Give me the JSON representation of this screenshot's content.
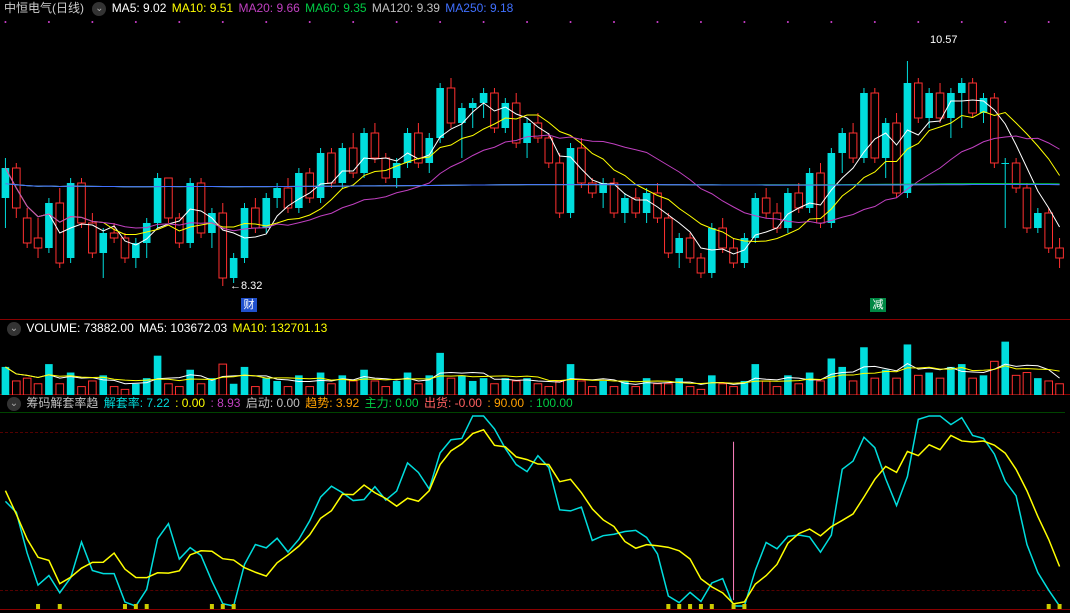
{
  "main": {
    "title": "中恒电气(日线)",
    "ma": [
      {
        "label": "MA5:",
        "value": "9.02",
        "color": "#ffffff"
      },
      {
        "label": "MA10:",
        "value": "9.51",
        "color": "#ffff00"
      },
      {
        "label": "MA20:",
        "value": "9.66",
        "color": "#c040c0"
      },
      {
        "label": "MA60:",
        "value": "9.35",
        "color": "#00cc44"
      },
      {
        "label": "MA120:",
        "value": "9.39",
        "color": "#c0c0c0"
      },
      {
        "label": "MA250:",
        "value": "9.18",
        "color": "#4070ff"
      }
    ],
    "ylim": [
      8.0,
      11.0
    ],
    "annotation_high": "10.57",
    "annotation_low": "8.32",
    "marker_cai": "财",
    "marker_jian": "减",
    "line_colors": {
      "ma5": "#ffffff",
      "ma10": "#ffff00",
      "ma20": "#c040c0",
      "ma60": "#00cc44",
      "ma120": "#c0c0c0",
      "ma250": "#4070ff"
    },
    "candles": [
      {
        "o": 9.2,
        "h": 9.6,
        "l": 8.9,
        "c": 9.5,
        "t": "u"
      },
      {
        "o": 9.5,
        "h": 9.55,
        "l": 9.0,
        "c": 9.1,
        "t": "d"
      },
      {
        "o": 9.0,
        "h": 9.1,
        "l": 8.7,
        "c": 8.75,
        "t": "u"
      },
      {
        "o": 8.8,
        "h": 9.0,
        "l": 8.6,
        "c": 8.7,
        "t": "d"
      },
      {
        "o": 8.7,
        "h": 9.2,
        "l": 8.65,
        "c": 9.15,
        "t": "u"
      },
      {
        "o": 9.15,
        "h": 9.3,
        "l": 8.5,
        "c": 8.55,
        "t": "d"
      },
      {
        "o": 8.6,
        "h": 9.4,
        "l": 8.55,
        "c": 9.35,
        "t": "u"
      },
      {
        "o": 9.35,
        "h": 9.4,
        "l": 8.9,
        "c": 8.95,
        "t": "d"
      },
      {
        "o": 8.95,
        "h": 9.05,
        "l": 8.6,
        "c": 8.65,
        "t": "d"
      },
      {
        "o": 8.65,
        "h": 8.9,
        "l": 8.4,
        "c": 8.85,
        "t": "u"
      },
      {
        "o": 8.85,
        "h": 8.95,
        "l": 8.75,
        "c": 8.8,
        "t": "d"
      },
      {
        "o": 8.8,
        "h": 8.85,
        "l": 8.55,
        "c": 8.6,
        "t": "d"
      },
      {
        "o": 8.6,
        "h": 8.8,
        "l": 8.5,
        "c": 8.75,
        "t": "u"
      },
      {
        "o": 8.75,
        "h": 9.0,
        "l": 8.6,
        "c": 8.95,
        "t": "u"
      },
      {
        "o": 8.95,
        "h": 9.45,
        "l": 8.9,
        "c": 9.4,
        "t": "u"
      },
      {
        "o": 9.4,
        "h": 9.4,
        "l": 8.95,
        "c": 9.0,
        "t": "d"
      },
      {
        "o": 9.0,
        "h": 9.05,
        "l": 8.7,
        "c": 8.75,
        "t": "d"
      },
      {
        "o": 8.75,
        "h": 9.4,
        "l": 8.7,
        "c": 9.35,
        "t": "u"
      },
      {
        "o": 9.35,
        "h": 9.4,
        "l": 8.8,
        "c": 8.85,
        "t": "d"
      },
      {
        "o": 8.85,
        "h": 9.1,
        "l": 8.7,
        "c": 9.05,
        "t": "u"
      },
      {
        "o": 9.05,
        "h": 9.15,
        "l": 8.32,
        "c": 8.4,
        "t": "d"
      },
      {
        "o": 8.4,
        "h": 8.65,
        "l": 8.35,
        "c": 8.6,
        "t": "u"
      },
      {
        "o": 8.6,
        "h": 9.15,
        "l": 8.55,
        "c": 9.1,
        "t": "u"
      },
      {
        "o": 9.1,
        "h": 9.2,
        "l": 8.85,
        "c": 8.9,
        "t": "d"
      },
      {
        "o": 8.9,
        "h": 9.25,
        "l": 8.85,
        "c": 9.2,
        "t": "u"
      },
      {
        "o": 9.2,
        "h": 9.35,
        "l": 9.1,
        "c": 9.3,
        "t": "u"
      },
      {
        "o": 9.3,
        "h": 9.4,
        "l": 9.05,
        "c": 9.1,
        "t": "d"
      },
      {
        "o": 9.1,
        "h": 9.5,
        "l": 9.05,
        "c": 9.45,
        "t": "u"
      },
      {
        "o": 9.45,
        "h": 9.5,
        "l": 9.15,
        "c": 9.2,
        "t": "d"
      },
      {
        "o": 9.2,
        "h": 9.7,
        "l": 9.15,
        "c": 9.65,
        "t": "u"
      },
      {
        "o": 9.65,
        "h": 9.7,
        "l": 9.3,
        "c": 9.35,
        "t": "d"
      },
      {
        "o": 9.35,
        "h": 9.75,
        "l": 9.3,
        "c": 9.7,
        "t": "u"
      },
      {
        "o": 9.7,
        "h": 9.85,
        "l": 9.4,
        "c": 9.45,
        "t": "d"
      },
      {
        "o": 9.45,
        "h": 9.9,
        "l": 9.4,
        "c": 9.85,
        "t": "u"
      },
      {
        "o": 9.85,
        "h": 9.95,
        "l": 9.55,
        "c": 9.6,
        "t": "d"
      },
      {
        "o": 9.6,
        "h": 9.65,
        "l": 9.35,
        "c": 9.4,
        "t": "d"
      },
      {
        "o": 9.4,
        "h": 9.6,
        "l": 9.3,
        "c": 9.55,
        "t": "u"
      },
      {
        "o": 9.55,
        "h": 9.9,
        "l": 9.5,
        "c": 9.85,
        "t": "u"
      },
      {
        "o": 9.85,
        "h": 9.95,
        "l": 9.5,
        "c": 9.55,
        "t": "d"
      },
      {
        "o": 9.55,
        "h": 9.85,
        "l": 9.45,
        "c": 9.8,
        "t": "u"
      },
      {
        "o": 9.8,
        "h": 10.35,
        "l": 9.75,
        "c": 10.3,
        "t": "u"
      },
      {
        "o": 10.3,
        "h": 10.4,
        "l": 9.9,
        "c": 9.95,
        "t": "d"
      },
      {
        "o": 9.95,
        "h": 10.15,
        "l": 9.6,
        "c": 10.1,
        "t": "u"
      },
      {
        "o": 10.1,
        "h": 10.2,
        "l": 9.9,
        "c": 10.15,
        "t": "u"
      },
      {
        "o": 10.15,
        "h": 10.3,
        "l": 10.0,
        "c": 10.25,
        "t": "u"
      },
      {
        "o": 10.25,
        "h": 10.3,
        "l": 9.85,
        "c": 9.9,
        "t": "d"
      },
      {
        "o": 9.9,
        "h": 10.2,
        "l": 9.85,
        "c": 10.15,
        "t": "u"
      },
      {
        "o": 10.15,
        "h": 10.25,
        "l": 9.7,
        "c": 9.75,
        "t": "d"
      },
      {
        "o": 9.75,
        "h": 10.0,
        "l": 9.6,
        "c": 9.95,
        "t": "u"
      },
      {
        "o": 9.95,
        "h": 10.05,
        "l": 9.75,
        "c": 9.8,
        "t": "d"
      },
      {
        "o": 9.8,
        "h": 9.85,
        "l": 9.5,
        "c": 9.55,
        "t": "d"
      },
      {
        "o": 9.55,
        "h": 9.65,
        "l": 9.0,
        "c": 9.05,
        "t": "d"
      },
      {
        "o": 9.05,
        "h": 9.75,
        "l": 9.0,
        "c": 9.7,
        "t": "u"
      },
      {
        "o": 9.7,
        "h": 9.8,
        "l": 9.3,
        "c": 9.35,
        "t": "d"
      },
      {
        "o": 9.35,
        "h": 9.4,
        "l": 9.2,
        "c": 9.25,
        "t": "d"
      },
      {
        "o": 9.25,
        "h": 9.4,
        "l": 9.1,
        "c": 9.35,
        "t": "u"
      },
      {
        "o": 9.35,
        "h": 9.4,
        "l": 9.0,
        "c": 9.05,
        "t": "d"
      },
      {
        "o": 9.05,
        "h": 9.25,
        "l": 8.95,
        "c": 9.2,
        "t": "u"
      },
      {
        "o": 9.2,
        "h": 9.3,
        "l": 9.0,
        "c": 9.05,
        "t": "d"
      },
      {
        "o": 9.05,
        "h": 9.3,
        "l": 8.95,
        "c": 9.25,
        "t": "u"
      },
      {
        "o": 9.25,
        "h": 9.35,
        "l": 8.95,
        "c": 9.0,
        "t": "d"
      },
      {
        "o": 9.0,
        "h": 9.05,
        "l": 8.6,
        "c": 8.65,
        "t": "d"
      },
      {
        "o": 8.65,
        "h": 8.85,
        "l": 8.5,
        "c": 8.8,
        "t": "u"
      },
      {
        "o": 8.8,
        "h": 8.85,
        "l": 8.55,
        "c": 8.6,
        "t": "d"
      },
      {
        "o": 8.6,
        "h": 8.65,
        "l": 8.4,
        "c": 8.45,
        "t": "d"
      },
      {
        "o": 8.45,
        "h": 8.95,
        "l": 8.4,
        "c": 8.9,
        "t": "u"
      },
      {
        "o": 8.9,
        "h": 9.0,
        "l": 8.65,
        "c": 8.7,
        "t": "d"
      },
      {
        "o": 8.7,
        "h": 8.8,
        "l": 8.5,
        "c": 8.55,
        "t": "d"
      },
      {
        "o": 8.55,
        "h": 8.85,
        "l": 8.5,
        "c": 8.8,
        "t": "u"
      },
      {
        "o": 8.8,
        "h": 9.25,
        "l": 8.75,
        "c": 9.2,
        "t": "u"
      },
      {
        "o": 9.2,
        "h": 9.3,
        "l": 9.0,
        "c": 9.05,
        "t": "d"
      },
      {
        "o": 9.05,
        "h": 9.15,
        "l": 8.85,
        "c": 8.9,
        "t": "d"
      },
      {
        "o": 8.9,
        "h": 9.3,
        "l": 8.85,
        "c": 9.25,
        "t": "u"
      },
      {
        "o": 9.25,
        "h": 9.35,
        "l": 9.05,
        "c": 9.1,
        "t": "d"
      },
      {
        "o": 9.1,
        "h": 9.5,
        "l": 9.05,
        "c": 9.45,
        "t": "u"
      },
      {
        "o": 9.45,
        "h": 9.55,
        "l": 8.9,
        "c": 8.95,
        "t": "d"
      },
      {
        "o": 8.95,
        "h": 9.7,
        "l": 8.9,
        "c": 9.65,
        "t": "u"
      },
      {
        "o": 9.65,
        "h": 9.9,
        "l": 9.45,
        "c": 9.85,
        "t": "u"
      },
      {
        "o": 9.85,
        "h": 9.95,
        "l": 9.55,
        "c": 9.6,
        "t": "d"
      },
      {
        "o": 9.6,
        "h": 10.3,
        "l": 9.55,
        "c": 10.25,
        "t": "u"
      },
      {
        "o": 10.25,
        "h": 10.3,
        "l": 9.55,
        "c": 9.6,
        "t": "d"
      },
      {
        "o": 9.6,
        "h": 10.0,
        "l": 9.4,
        "c": 9.95,
        "t": "u"
      },
      {
        "o": 9.95,
        "h": 10.05,
        "l": 9.2,
        "c": 9.25,
        "t": "d"
      },
      {
        "o": 9.25,
        "h": 10.57,
        "l": 9.2,
        "c": 10.35,
        "t": "u"
      },
      {
        "o": 10.35,
        "h": 10.4,
        "l": 9.95,
        "c": 10.0,
        "t": "d"
      },
      {
        "o": 10.0,
        "h": 10.3,
        "l": 9.9,
        "c": 10.25,
        "t": "u"
      },
      {
        "o": 10.25,
        "h": 10.35,
        "l": 9.95,
        "c": 10.0,
        "t": "d"
      },
      {
        "o": 10.0,
        "h": 10.3,
        "l": 9.8,
        "c": 10.25,
        "t": "u"
      },
      {
        "o": 10.25,
        "h": 10.4,
        "l": 9.9,
        "c": 10.35,
        "t": "u"
      },
      {
        "o": 10.35,
        "h": 10.4,
        "l": 10.0,
        "c": 10.05,
        "t": "d"
      },
      {
        "o": 10.05,
        "h": 10.25,
        "l": 9.95,
        "c": 10.2,
        "t": "u"
      },
      {
        "o": 10.2,
        "h": 10.25,
        "l": 9.5,
        "c": 9.55,
        "t": "d"
      },
      {
        "o": 9.55,
        "h": 9.6,
        "l": 8.9,
        "c": 9.55,
        "t": "u"
      },
      {
        "o": 9.55,
        "h": 9.6,
        "l": 9.25,
        "c": 9.3,
        "t": "d"
      },
      {
        "o": 9.3,
        "h": 9.35,
        "l": 8.85,
        "c": 8.9,
        "t": "d"
      },
      {
        "o": 8.9,
        "h": 9.1,
        "l": 8.85,
        "c": 9.05,
        "t": "u"
      },
      {
        "o": 9.05,
        "h": 9.1,
        "l": 8.65,
        "c": 8.7,
        "t": "d"
      },
      {
        "o": 8.7,
        "h": 8.8,
        "l": 8.5,
        "c": 8.6,
        "t": "d"
      }
    ]
  },
  "volume": {
    "labels": [
      {
        "label": "VOLUME:",
        "value": "73882.00",
        "color": "#ffffff"
      },
      {
        "label": "MA5:",
        "value": "103672.03",
        "color": "#ffffff"
      },
      {
        "label": "MA10:",
        "value": "132701.13",
        "color": "#ffff00"
      }
    ],
    "bars": [
      50,
      25,
      30,
      20,
      55,
      20,
      40,
      15,
      25,
      35,
      15,
      10,
      20,
      30,
      70,
      20,
      15,
      45,
      20,
      30,
      55,
      20,
      50,
      15,
      30,
      25,
      15,
      35,
      15,
      40,
      20,
      35,
      25,
      45,
      25,
      15,
      25,
      40,
      20,
      35,
      75,
      30,
      35,
      25,
      30,
      20,
      30,
      25,
      30,
      20,
      15,
      25,
      55,
      25,
      15,
      25,
      15,
      25,
      15,
      30,
      20,
      20,
      30,
      15,
      10,
      35,
      20,
      15,
      25,
      55,
      25,
      15,
      35,
      20,
      40,
      25,
      65,
      50,
      25,
      85,
      30,
      45,
      30,
      90,
      35,
      40,
      30,
      50,
      55,
      30,
      35,
      60,
      95,
      35,
      40,
      30,
      25,
      20
    ],
    "line_colors": {
      "ma5": "#ffffff",
      "ma10": "#ffff00"
    }
  },
  "indicator": {
    "labels": [
      {
        "label": "筹码解套率趋",
        "color": "#c0c0c0"
      },
      {
        "label": "解套率:",
        "value": "7.22",
        "color": "#00dddd"
      },
      {
        "label": ":",
        "value": "0.00",
        "color": "#ffff00"
      },
      {
        "label": ":",
        "value": "8.93",
        "color": "#c040c0"
      },
      {
        "label": "启动:",
        "value": "0.00",
        "color": "#c0c0c0"
      },
      {
        "label": "趋势:",
        "value": "3.92",
        "color": "#ffa000"
      },
      {
        "label": "主力:",
        "value": "0.00",
        "color": "#00cc44"
      },
      {
        "label": "出货:",
        "value": "-0.00",
        "color": "#ff6060"
      },
      {
        "label": ":",
        "value": "90.00",
        "color": "#ffa000"
      },
      {
        "label": ":",
        "value": "100.00",
        "color": "#00cc44"
      }
    ],
    "line_colors": {
      "cyan": "#00dddd",
      "yellow": "#ffff00"
    },
    "ylim": [
      0,
      100
    ]
  },
  "background": "#000000",
  "border_color": "#880000"
}
